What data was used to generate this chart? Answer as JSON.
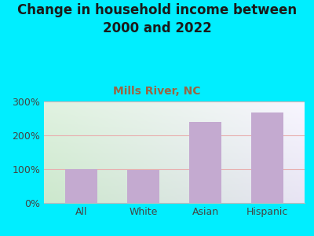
{
  "title": "Change in household income between\n2000 and 2022",
  "subtitle": "Mills River, NC",
  "categories": [
    "All",
    "White",
    "Asian",
    "Hispanic"
  ],
  "values": [
    100,
    97,
    240,
    268
  ],
  "bar_color": "#c4aad0",
  "ylim": [
    0,
    300
  ],
  "yticks": [
    0,
    100,
    200,
    300
  ],
  "ytick_labels": [
    "0%",
    "100%",
    "200%",
    "300%"
  ],
  "title_fontsize": 12,
  "subtitle_fontsize": 10,
  "tick_fontsize": 9,
  "bg_outer": "#00eeff",
  "bg_plot_tl": "#d8edd8",
  "bg_plot_tr": "#f0eef8",
  "bg_plot_bl": "#cce8cc",
  "bg_plot_br": "#eeeaf8",
  "grid_color": "#e8b0b0",
  "title_color": "#1a1a1a",
  "subtitle_color": "#996644"
}
